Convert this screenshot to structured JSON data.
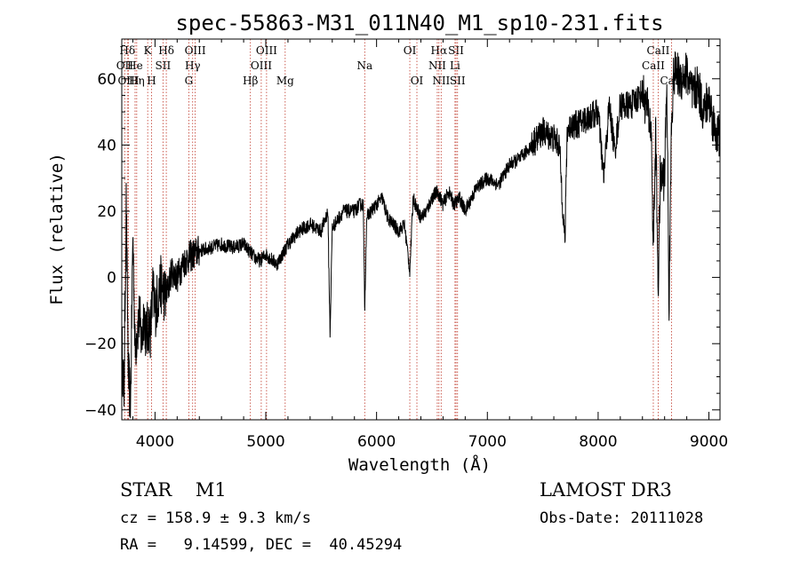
{
  "chart_data": {
    "type": "line",
    "title": "spec-55863-M31_011N40_M1_sp10-231.fits",
    "xlabel": "Wavelength (Å)",
    "ylabel": "Flux (relative)",
    "xlim": [
      3700,
      9100
    ],
    "ylim": [
      -43,
      72
    ],
    "x_ticks": [
      4000,
      5000,
      6000,
      7000,
      8000,
      9000
    ],
    "y_ticks": [
      -40,
      -20,
      0,
      20,
      40,
      60
    ],
    "spectral_lines": [
      {
        "label": "Hδ",
        "wavelength": 3750,
        "row": 0
      },
      {
        "label": "OII",
        "wavelength": 3727,
        "row": 1
      },
      {
        "label": "OIII",
        "wavelength": 3760,
        "row": 2
      },
      {
        "label": "He",
        "wavelength": 3820,
        "row": 1
      },
      {
        "label": "Hη",
        "wavelength": 3835,
        "row": 2
      },
      {
        "label": "K",
        "wavelength": 3934,
        "row": 0
      },
      {
        "label": "H",
        "wavelength": 3969,
        "row": 2
      },
      {
        "label": "SII",
        "wavelength": 4072,
        "row": 1
      },
      {
        "label": "Hδ",
        "wavelength": 4102,
        "row": 0
      },
      {
        "label": "OIII",
        "wavelength": 4363,
        "row": 0
      },
      {
        "label": "Hγ",
        "wavelength": 4340,
        "row": 1
      },
      {
        "label": "G",
        "wavelength": 4305,
        "row": 2
      },
      {
        "label": "Hβ",
        "wavelength": 4861,
        "row": 2
      },
      {
        "label": "OIII",
        "wavelength": 5007,
        "row": 0
      },
      {
        "label": "OIII",
        "wavelength": 4959,
        "row": 1
      },
      {
        "label": "Mg",
        "wavelength": 5175,
        "row": 2
      },
      {
        "label": "Na",
        "wavelength": 5893,
        "row": 1
      },
      {
        "label": "OI",
        "wavelength": 6300,
        "row": 0
      },
      {
        "label": "OI",
        "wavelength": 6364,
        "row": 2
      },
      {
        "label": "Hα",
        "wavelength": 6563,
        "row": 0
      },
      {
        "label": "NII",
        "wavelength": 6548,
        "row": 1
      },
      {
        "label": "NII",
        "wavelength": 6583,
        "row": 2
      },
      {
        "label": "SII",
        "wavelength": 6717,
        "row": 0
      },
      {
        "label": "Li",
        "wavelength": 6708,
        "row": 1
      },
      {
        "label": "SII",
        "wavelength": 6731,
        "row": 2
      },
      {
        "label": "CaII",
        "wavelength": 8542,
        "row": 0
      },
      {
        "label": "CaII",
        "wavelength": 8498,
        "row": 1
      },
      {
        "label": "CaII",
        "wavelength": 8662,
        "row": 2
      }
    ],
    "spectrum_anchors": {
      "x": [
        3700,
        3720,
        3740,
        3760,
        3780,
        3800,
        3820,
        3840,
        3860,
        3880,
        3900,
        3920,
        3940,
        3960,
        3980,
        4000,
        4050,
        4100,
        4150,
        4200,
        4250,
        4300,
        4400,
        4500,
        4600,
        4700,
        4800,
        4850,
        4900,
        4950,
        5000,
        5100,
        5200,
        5300,
        5400,
        5500,
        5560,
        5580,
        5600,
        5700,
        5800,
        5850,
        5880,
        5893,
        5910,
        5950,
        6000,
        6050,
        6100,
        6150,
        6200,
        6250,
        6280,
        6300,
        6330,
        6400,
        6450,
        6500,
        6550,
        6600,
        6650,
        6700,
        6750,
        6800,
        6900,
        7000,
        7100,
        7200,
        7300,
        7400,
        7500,
        7600,
        7650,
        7700,
        7720,
        7750,
        7800,
        7900,
        8000,
        8050,
        8100,
        8150,
        8200,
        8300,
        8400,
        8450,
        8480,
        8498,
        8520,
        8542,
        8560,
        8600,
        8620,
        8640,
        8662,
        8680,
        8700,
        8750,
        8800,
        8850,
        8900,
        8950,
        9000,
        9050,
        9100
      ],
      "y": [
        -20,
        -36,
        22,
        -30,
        -38,
        14,
        -22,
        -15,
        -12,
        -20,
        -10,
        -18,
        -14,
        -16,
        -4,
        -10,
        -2,
        -6,
        2,
        0,
        4,
        6,
        8,
        9,
        10,
        9,
        10,
        8,
        6,
        5,
        7,
        4,
        10,
        14,
        16,
        14,
        20,
        -17,
        15,
        20,
        20,
        22,
        22,
        -10,
        18,
        20,
        22,
        24,
        18,
        16,
        14,
        16,
        8,
        2,
        24,
        18,
        20,
        24,
        26,
        22,
        26,
        22,
        24,
        20,
        27,
        30,
        28,
        34,
        36,
        40,
        44,
        42,
        40,
        10,
        44,
        46,
        46,
        48,
        50,
        30,
        52,
        38,
        52,
        52,
        56,
        50,
        44,
        8,
        44,
        -4,
        30,
        30,
        60,
        -10,
        48,
        60,
        62,
        60,
        62,
        55,
        58,
        50,
        54,
        45,
        42
      ]
    },
    "info": {
      "object": "STAR    M1",
      "survey": "LAMOST DR3",
      "cz": "cz = 158.9 ± 9.3 km/s",
      "obs_date": "Obs-Date: 20111028",
      "coords": "RA =   9.14599, DEC =  40.45294"
    }
  }
}
